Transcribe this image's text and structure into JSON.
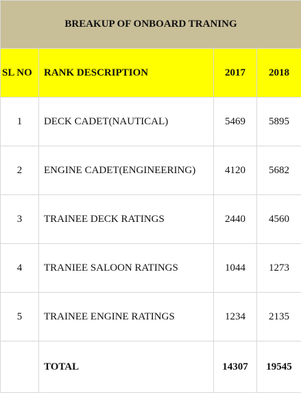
{
  "title": "BREAKUP OF ONBOARD TRANING",
  "headers": {
    "sl_no": "SL NO",
    "rank_description": "RANK DESCRIPTION",
    "year1": "2017",
    "year2": "2018"
  },
  "rows": [
    {
      "sl": "1",
      "desc": "DECK CADET(NAUTICAL)",
      "y2017": "5469",
      "y2018": "5895"
    },
    {
      "sl": "2",
      "desc": "ENGINE CADET(ENGINEERING)",
      "y2017": "4120",
      "y2018": "5682"
    },
    {
      "sl": "3",
      "desc": "TRAINEE DECK RATINGS",
      "y2017": "2440",
      "y2018": "4560"
    },
    {
      "sl": "4",
      "desc": "TRANIEE SALOON RATINGS",
      "y2017": "1044",
      "y2018": "1273"
    },
    {
      "sl": "5",
      "desc": "TRAINEE ENGINE RATINGS",
      "y2017": "1234",
      "y2018": "2135"
    }
  ],
  "total": {
    "label": "TOTAL",
    "y2017": "14307",
    "y2018": "19545"
  },
  "colors": {
    "title_bg": "#c8be98",
    "header_bg": "#ffff00"
  }
}
